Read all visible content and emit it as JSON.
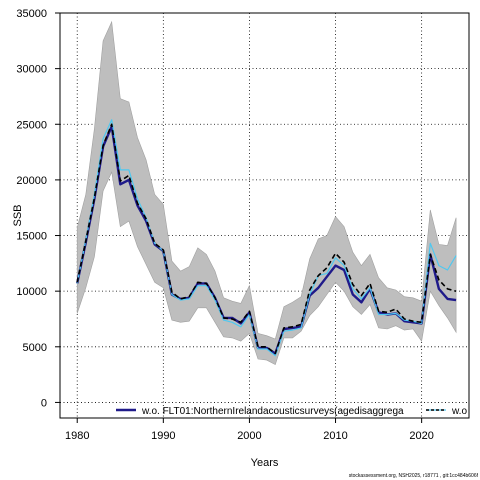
{
  "chart_data": {
    "type": "line",
    "xlabel": "Years",
    "ylabel": "SSB",
    "xlim": [
      1978,
      2025.5
    ],
    "ylim": [
      -1400,
      35000
    ],
    "x_ticks": [
      1980,
      1990,
      2000,
      2010,
      2020
    ],
    "y_ticks": [
      0,
      5000,
      10000,
      15000,
      20000,
      25000,
      30000,
      35000
    ],
    "grid": true,
    "grid_style": "dotted",
    "legend_placement": "bottom",
    "footer": "stockassessment.org, NSH2025, r18771 , git:1cc484b606f",
    "years": [
      1980,
      1981,
      1982,
      1983,
      1984,
      1985,
      1986,
      1987,
      1988,
      1989,
      1990,
      1991,
      1992,
      1993,
      1994,
      1995,
      1996,
      1997,
      1998,
      1999,
      2000,
      2001,
      2002,
      2003,
      2004,
      2005,
      2006,
      2007,
      2008,
      2009,
      2010,
      2011,
      2012,
      2013,
      2014,
      2015,
      2016,
      2017,
      2018,
      2019,
      2020,
      2021,
      2022,
      2023,
      2024
    ],
    "confidence_band": {
      "lower": [
        8000,
        10300,
        13100,
        19000,
        20700,
        15800,
        16300,
        14000,
        12400,
        10800,
        10300,
        7400,
        7200,
        7300,
        8500,
        8500,
        7200,
        5900,
        5800,
        5500,
        6200,
        3900,
        3800,
        3400,
        5800,
        5800,
        6400,
        7800,
        8600,
        9700,
        10800,
        10000,
        8600,
        7900,
        8800,
        6700,
        6600,
        6900,
        6500,
        6600,
        5500,
        10000,
        8700,
        7600,
        6300
      ],
      "upper": [
        15700,
        18700,
        24600,
        32500,
        34200,
        27300,
        27000,
        23800,
        21800,
        18700,
        17800,
        12700,
        11800,
        12200,
        13900,
        13300,
        11800,
        9400,
        9100,
        8900,
        10500,
        6200,
        6000,
        5700,
        8600,
        9000,
        9500,
        12900,
        14700,
        15000,
        16700,
        15800,
        13500,
        12300,
        13300,
        11200,
        10300,
        10100,
        9500,
        9400,
        9100,
        17300,
        14200,
        14100,
        16600
      ],
      "color": "#bebebe"
    },
    "series": [
      {
        "name": "",
        "color": "#000000",
        "dashed": true,
        "values": [
          10800,
          14500,
          18400,
          23100,
          25000,
          19900,
          20400,
          17900,
          16500,
          14300,
          13700,
          9900,
          9300,
          9500,
          10800,
          10700,
          9400,
          7600,
          7500,
          7200,
          8200,
          5000,
          5000,
          4400,
          6700,
          6800,
          7000,
          10100,
          11400,
          12100,
          13400,
          12600,
          10600,
          9600,
          10700,
          8200,
          8100,
          8400,
          7500,
          7300,
          7200,
          13300,
          11000,
          10200,
          10000
        ]
      },
      {
        "name": "w.o. FLT01:NorthernIrelandacousticsurveys(agedisaggrega",
        "color": "#1f1a8a",
        "dashed": false,
        "values": [
          10700,
          14400,
          18300,
          23000,
          24800,
          19600,
          20000,
          17700,
          16300,
          14200,
          13600,
          9700,
          9300,
          9400,
          10700,
          10700,
          9400,
          7600,
          7600,
          7100,
          8100,
          4900,
          4900,
          4400,
          6600,
          6700,
          6800,
          9600,
          10300,
          11300,
          12300,
          11900,
          9700,
          9000,
          10200,
          8100,
          7900,
          8000,
          7300,
          7200,
          7100,
          13300,
          10200,
          9300,
          9200
        ]
      },
      {
        "name": "w.o",
        "color": "#4fc8f0",
        "dashed": false,
        "values": [
          10700,
          14600,
          18700,
          23700,
          25400,
          20900,
          20900,
          18300,
          16600,
          14300,
          13600,
          9700,
          9200,
          9300,
          10500,
          10500,
          9200,
          7400,
          7200,
          6800,
          7900,
          4800,
          4800,
          4200,
          6400,
          6500,
          6700,
          9700,
          11400,
          11600,
          13000,
          12300,
          10200,
          9300,
          10300,
          7900,
          7900,
          8000,
          7400,
          7300,
          7100,
          14300,
          12300,
          11900,
          13200
        ]
      }
    ]
  }
}
